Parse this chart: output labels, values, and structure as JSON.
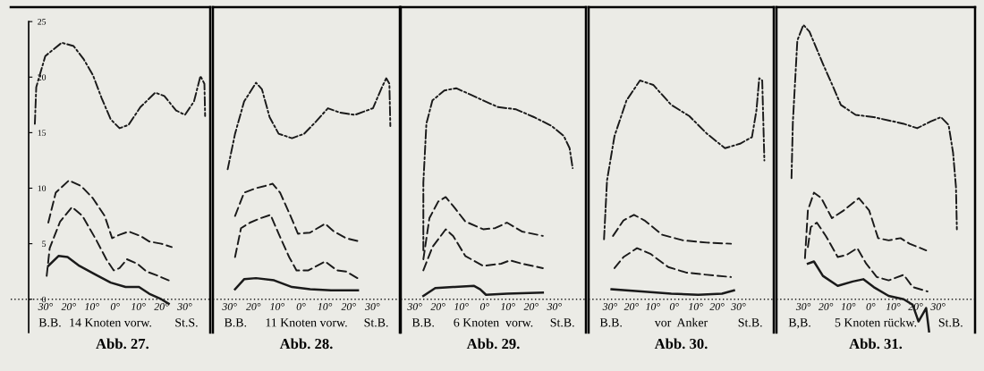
{
  "chart_data": [
    {
      "type": "line",
      "title": "Abb. 27.",
      "annotations": [
        "B.B.",
        "14 Knoten vorw.",
        "St.S."
      ],
      "xlim": [
        -45,
        41
      ],
      "ylim": [
        -3,
        26.3
      ],
      "yticks": [
        0,
        5,
        10,
        15,
        20,
        25
      ],
      "ref_lines": [
        {
          "axis": "y",
          "value": 0,
          "color": "#1a1a1a",
          "line_style": "dotted"
        }
      ],
      "xticks": [
        {
          "value": -30,
          "label": "30°"
        },
        {
          "value": -20,
          "label": "20°"
        },
        {
          "value": -10,
          "label": "10°"
        },
        {
          "value": 0,
          "label": "0°"
        },
        {
          "value": 10,
          "label": "10°"
        },
        {
          "value": 20,
          "label": "20°"
        },
        {
          "value": 30,
          "label": "30°"
        }
      ],
      "series": [
        {
          "color": "#1a1a1a",
          "line_style": "dashdot",
          "x": [
            -34.6,
            -34,
            -30.1,
            -23,
            -17.9,
            -13.5,
            -9.6,
            -5.8,
            -1.9,
            1.9,
            5.8,
            10.9,
            17.3,
            21.2,
            26.3,
            30.1,
            34,
            36.8,
            38.5,
            38.8
          ],
          "values": [
            15.8,
            19.1,
            21.9,
            23.1,
            22.8,
            21.6,
            20.2,
            18.1,
            16.2,
            15.4,
            15.7,
            17.3,
            18.6,
            18.3,
            17.0,
            16.6,
            17.8,
            20.1,
            19.4,
            16.5
          ]
        },
        {
          "color": "#1a1a1a",
          "line_style": "dashed",
          "x": [
            -28.8,
            -25.6,
            -19.9,
            -14.7,
            -9.6,
            -4.5,
            -1.3,
            1.9,
            5.8,
            10.9,
            14.7,
            19.9,
            24.4
          ],
          "values": [
            6.9,
            9.6,
            10.7,
            10.2,
            9.1,
            7.5,
            5.5,
            5.8,
            6.1,
            5.7,
            5.2,
            5.0,
            4.7
          ]
        },
        {
          "color": "#1a1a1a",
          "line_style": "dashed",
          "x": [
            -29.5,
            -28.2,
            -23.7,
            -18.6,
            -14.1,
            -8.3,
            -3.8,
            -0.6,
            1.9,
            5.1,
            9.6,
            13.5,
            18.6,
            23.1
          ],
          "values": [
            2.1,
            4.6,
            7.0,
            8.3,
            7.5,
            5.4,
            3.6,
            2.6,
            2.8,
            3.6,
            3.2,
            2.5,
            2.1,
            1.7
          ]
        },
        {
          "color": "#1a1a1a",
          "line_style": "solid",
          "x": [
            -28.8,
            -24.4,
            -20.5,
            -15.4,
            -8.3,
            -1.9,
            4.5,
            10.3,
            14.7,
            19.9,
            23.1
          ],
          "values": [
            3.0,
            3.9,
            3.8,
            3.0,
            2.2,
            1.5,
            1.1,
            1.1,
            0.5,
            0.0,
            -0.4
          ]
        }
      ]
    },
    {
      "type": "line",
      "title": "Abb. 28.",
      "annotations": [
        "B.B.",
        "11 Knoten vorw.",
        "St.B."
      ],
      "xlim": [
        -37,
        41.5
      ],
      "ylim": [
        -3,
        26.3
      ],
      "tick_labels": "x",
      "ref_lines": [
        {
          "axis": "y",
          "value": 0,
          "color": "#1a1a1a",
          "line_style": "dotted"
        }
      ],
      "xticks": [
        {
          "value": -30,
          "label": "30°"
        },
        {
          "value": -20,
          "label": "20°"
        },
        {
          "value": -10,
          "label": "10°"
        },
        {
          "value": 0,
          "label": "0°"
        },
        {
          "value": 10,
          "label": "10°"
        },
        {
          "value": 20,
          "label": "20°"
        },
        {
          "value": 30,
          "label": "30°"
        }
      ],
      "series": [
        {
          "color": "#1a1a1a",
          "line_style": "dashdot",
          "x": [
            -30.8,
            -27.7,
            -23.9,
            -18.9,
            -16.4,
            -13.2,
            -9.4,
            -3.8,
            1.3,
            6.3,
            11.3,
            16.4,
            22.6,
            30.2,
            34,
            35.8,
            37.1,
            37.5
          ],
          "values": [
            11.7,
            14.9,
            17.8,
            19.5,
            18.9,
            16.4,
            14.9,
            14.5,
            14.9,
            16.0,
            17.2,
            16.8,
            16.6,
            17.2,
            19.1,
            19.9,
            19.4,
            15.6
          ]
        },
        {
          "color": "#1a1a1a",
          "line_style": "dashed",
          "x": [
            -27.7,
            -23.9,
            -18.9,
            -15.1,
            -11.9,
            -8.8,
            -4.4,
            -1.3,
            3.8,
            10.1,
            13.8,
            18.9,
            24.5
          ],
          "values": [
            7.5,
            9.6,
            10.0,
            10.2,
            10.4,
            9.6,
            7.5,
            5.9,
            6.0,
            6.8,
            6.1,
            5.5,
            5.2
          ]
        },
        {
          "color": "#1a1a1a",
          "line_style": "dashed",
          "x": [
            -27.7,
            -25.2,
            -21.4,
            -17,
            -12.8,
            -9.4,
            -5,
            -1.9,
            3.1,
            10.1,
            15.1,
            18.9,
            24.5
          ],
          "values": [
            3.8,
            6.4,
            6.9,
            7.3,
            7.6,
            5.9,
            3.8,
            2.6,
            2.6,
            3.4,
            2.6,
            2.5,
            1.8
          ]
        },
        {
          "color": "#1a1a1a",
          "line_style": "solid",
          "x": [
            -27.7,
            -23.9,
            -18.9,
            -11.3,
            -3.8,
            3.8,
            12.6,
            23.9
          ],
          "values": [
            0.9,
            1.8,
            1.9,
            1.7,
            1.1,
            0.9,
            0.8,
            0.8
          ]
        }
      ]
    },
    {
      "type": "line",
      "title": "Abb. 29.",
      "annotations": [
        "B.B.",
        "6 Knoten  vorw.",
        "St.B."
      ],
      "xlim": [
        -36,
        43.5
      ],
      "ylim": [
        -3,
        26.3
      ],
      "tick_labels": "x",
      "ref_lines": [
        {
          "axis": "y",
          "value": 0,
          "color": "#1a1a1a",
          "line_style": "dotted"
        }
      ],
      "xticks": [
        {
          "value": -30,
          "label": "30°"
        },
        {
          "value": -20,
          "label": "20°"
        },
        {
          "value": -10,
          "label": "10°"
        },
        {
          "value": 0,
          "label": "0°"
        },
        {
          "value": 10,
          "label": "10°"
        },
        {
          "value": 20,
          "label": "20°"
        },
        {
          "value": 30,
          "label": "30°"
        }
      ],
      "series": [
        {
          "color": "#1a1a1a",
          "line_style": "dashdot",
          "x": [
            -26.3,
            -26.3,
            -25,
            -22.4,
            -17.3,
            -12.2,
            -5.8,
            -0.6,
            5.8,
            13.5,
            21.2,
            28.8,
            34,
            36.5,
            37.8
          ],
          "values": [
            4.4,
            10.5,
            15.8,
            17.9,
            18.8,
            19.0,
            18.4,
            17.9,
            17.3,
            17.1,
            16.4,
            15.6,
            14.7,
            13.6,
            11.8
          ]
        },
        {
          "color": "#1a1a1a",
          "line_style": "dashed",
          "x": [
            -26.3,
            -23.7,
            -19.9,
            -16.7,
            -13.5,
            -8.3,
            -0.6,
            4.5,
            9.6,
            16,
            25
          ],
          "values": [
            3.6,
            7.3,
            8.8,
            9.2,
            8.4,
            7.0,
            6.3,
            6.4,
            6.9,
            6.1,
            5.7
          ]
        },
        {
          "color": "#1a1a1a",
          "line_style": "dashed",
          "x": [
            -26.3,
            -22.4,
            -16.7,
            -13.5,
            -8.3,
            -0.6,
            7.1,
            10.9,
            16,
            25
          ],
          "values": [
            2.6,
            4.7,
            6.3,
            5.7,
            3.9,
            3.0,
            3.2,
            3.5,
            3.2,
            2.8
          ]
        },
        {
          "color": "#1a1a1a",
          "line_style": "solid",
          "x": [
            -26.3,
            -21.2,
            -13.5,
            -4.5,
            -1.9,
            0.6,
            9.6,
            25
          ],
          "values": [
            0.3,
            1.0,
            1.1,
            1.2,
            0.9,
            0.4,
            0.5,
            0.6
          ]
        }
      ]
    },
    {
      "type": "line",
      "title": "Abb. 30.",
      "annotations": [
        "B.B.",
        "vor  Anker",
        "St.B."
      ],
      "xlim": [
        -40,
        46.5
      ],
      "ylim": [
        -3,
        26.3
      ],
      "tick_labels": "x",
      "ref_lines": [
        {
          "axis": "y",
          "value": 0,
          "color": "#1a1a1a",
          "line_style": "dotted"
        }
      ],
      "xticks": [
        {
          "value": -30,
          "label": "30°"
        },
        {
          "value": -20,
          "label": "20°"
        },
        {
          "value": -10,
          "label": "10°"
        },
        {
          "value": 0,
          "label": "0°"
        },
        {
          "value": 10,
          "label": "10°"
        },
        {
          "value": 20,
          "label": "20°"
        },
        {
          "value": 30,
          "label": "30°"
        }
      ],
      "series": [
        {
          "color": "#1a1a1a",
          "line_style": "dashdot",
          "x": [
            -32.8,
            -31.4,
            -27.9,
            -22.3,
            -16,
            -9.8,
            -1.4,
            7,
            15.3,
            23.7,
            30.7,
            36.3,
            38.4,
            39.7,
            41.1,
            42.1
          ],
          "values": [
            5.4,
            10.7,
            14.7,
            17.9,
            19.7,
            19.3,
            17.5,
            16.5,
            14.9,
            13.6,
            14.0,
            14.6,
            17.0,
            19.9,
            19.7,
            12.5
          ]
        },
        {
          "color": "#1a1a1a",
          "line_style": "dashed",
          "x": [
            -28.6,
            -23.7,
            -18.8,
            -13.9,
            -5.6,
            4.2,
            15.3,
            26.5
          ],
          "values": [
            5.7,
            7.1,
            7.6,
            7.1,
            5.8,
            5.3,
            5.1,
            5.0
          ]
        },
        {
          "color": "#1a1a1a",
          "line_style": "dashed",
          "x": [
            -27.9,
            -23.7,
            -17.4,
            -11.2,
            -2.8,
            5.6,
            15.3,
            26.5
          ],
          "values": [
            2.8,
            3.8,
            4.6,
            4.1,
            2.9,
            2.4,
            2.2,
            2.0
          ]
        },
        {
          "color": "#1a1a1a",
          "line_style": "solid",
          "x": [
            -29.3,
            -15.3,
            -1.4,
            11.2,
            22.3,
            27.9
          ],
          "values": [
            0.9,
            0.7,
            0.5,
            0.4,
            0.5,
            0.8
          ]
        }
      ]
    },
    {
      "type": "line",
      "title": "Abb. 31.",
      "annotations": [
        "B,B.",
        "5 Knoten rückw.",
        "St.B."
      ],
      "xlim": [
        -42,
        46.5
      ],
      "ylim": [
        -3,
        26.3
      ],
      "tick_labels": "x",
      "ref_lines": [
        {
          "axis": "y",
          "value": 0,
          "color": "#1a1a1a",
          "line_style": "dotted"
        }
      ],
      "xticks": [
        {
          "value": -30,
          "label": "30°"
        },
        {
          "value": -20,
          "label": "20°"
        },
        {
          "value": -10,
          "label": "10°"
        },
        {
          "value": 0,
          "label": "0°"
        },
        {
          "value": 10,
          "label": "10°"
        },
        {
          "value": 20,
          "label": "20°"
        },
        {
          "value": 30,
          "label": "30°"
        }
      ],
      "series": [
        {
          "color": "#1a1a1a",
          "line_style": "dashdot",
          "x": [
            -35.3,
            -34.7,
            -32.7,
            -30,
            -27.3,
            -21.3,
            -16.7,
            -13.3,
            -6.7,
            1.3,
            8,
            14.7,
            20.7,
            26.7,
            31.3,
            34.7,
            36.7,
            38,
            38.4
          ],
          "values": [
            10.9,
            15.9,
            23.3,
            24.7,
            24.1,
            21.2,
            19.1,
            17.5,
            16.6,
            16.4,
            16.1,
            15.8,
            15.4,
            16.0,
            16.4,
            15.7,
            13.2,
            10.1,
            6.3
          ]
        },
        {
          "color": "#1a1a1a",
          "line_style": "dashed",
          "x": [
            -29.3,
            -28,
            -25.3,
            -22,
            -17.3,
            -12,
            -5.3,
            -0.7,
            3.3,
            8,
            13.3,
            17.3,
            24.7
          ],
          "values": [
            3.7,
            8.0,
            9.6,
            9.1,
            7.3,
            8.0,
            9.1,
            8.0,
            5.5,
            5.3,
            5.5,
            5.0,
            4.4
          ]
        },
        {
          "color": "#1a1a1a",
          "line_style": "dashed",
          "x": [
            -28,
            -26.7,
            -24,
            -20,
            -14.7,
            -10.7,
            -6,
            -2,
            2.7,
            8,
            14.7,
            18.7,
            25.3
          ],
          "values": [
            4.7,
            6.5,
            6.9,
            5.7,
            3.8,
            4.0,
            4.6,
            3.2,
            2.0,
            1.7,
            2.2,
            1.1,
            0.7
          ]
        },
        {
          "color": "#1a1a1a",
          "line_style": "solid",
          "x": [
            -28,
            -25.3,
            -21.3,
            -14.7,
            -8,
            -3.3,
            1.3,
            8,
            14.7,
            18.7,
            21.3,
            23.3,
            24.7,
            26
          ],
          "values": [
            3.2,
            3.4,
            2.1,
            1.2,
            1.6,
            1.8,
            1.1,
            0.3,
            0.0,
            -0.5,
            -2.0,
            -1.3,
            -0.8,
            -2.9
          ]
        }
      ]
    }
  ]
}
